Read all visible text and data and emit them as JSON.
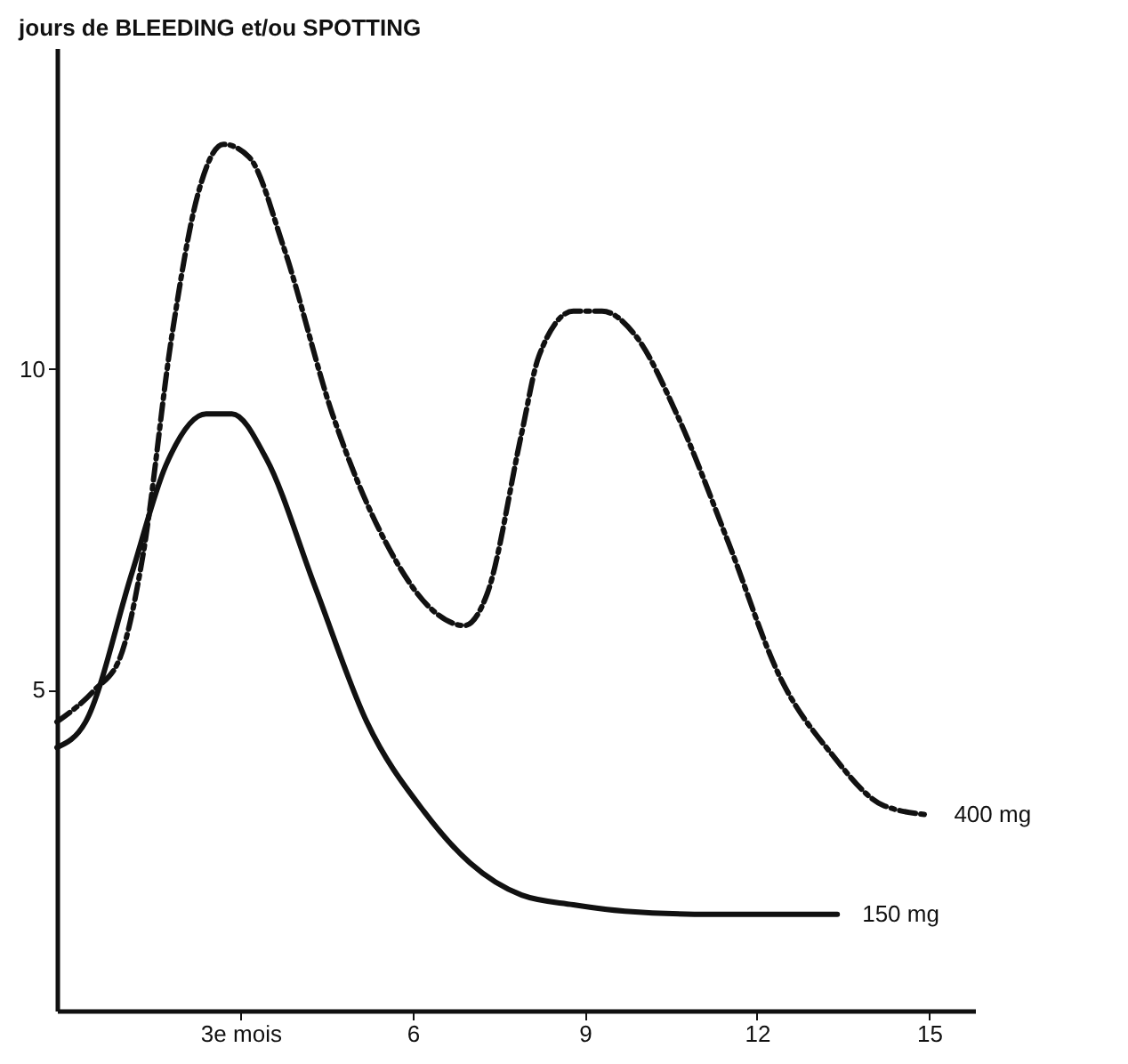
{
  "chart_data": {
    "type": "line",
    "ylabel": "jours de BLEEDING et/ou SPOTTING",
    "xlim": [
      -0.2,
      15.8
    ],
    "ylim": [
      0,
      15
    ],
    "xticks": [
      {
        "value": 3,
        "label": "3e mois"
      },
      6,
      9,
      12,
      15
    ],
    "yticks": [
      5,
      10
    ],
    "grid": false,
    "marker": "none",
    "series": [
      {
        "name": "400 mg",
        "color": "#111111",
        "line_style": "dashed",
        "x": [
          -0.2,
          0.46,
          0.9,
          1.3,
          1.8,
          2.25,
          2.7,
          3.15,
          3.75,
          4.6,
          5.5,
          6.4,
          6.9,
          7.3,
          7.9,
          8.2,
          8.8,
          9.3,
          9.9,
          10.6,
          11.5,
          12.4,
          13.3,
          14.2,
          15.0
        ],
        "values": [
          4.5,
          5.0,
          5.5,
          7.1,
          10.5,
          12.7,
          13.5,
          13.3,
          11.9,
          9.3,
          7.35,
          6.2,
          6.0,
          6.5,
          9.0,
          10.2,
          10.9,
          10.9,
          10.5,
          9.3,
          7.3,
          5.2,
          4.0,
          3.2,
          3.05
        ]
      },
      {
        "name": "150 mg",
        "color": "#111111",
        "line_style": "solid",
        "x": [
          -0.2,
          0.3,
          1.1,
          1.7,
          2.4,
          2.85,
          3.45,
          4.3,
          5.2,
          6.2,
          7.0,
          7.9,
          8.8,
          9.7,
          11.2,
          13.4
        ],
        "values": [
          4.1,
          4.5,
          6.8,
          8.5,
          9.3,
          9.3,
          8.6,
          6.6,
          4.5,
          3.1,
          2.3,
          1.8,
          1.65,
          1.55,
          1.5,
          1.5
        ]
      }
    ]
  }
}
